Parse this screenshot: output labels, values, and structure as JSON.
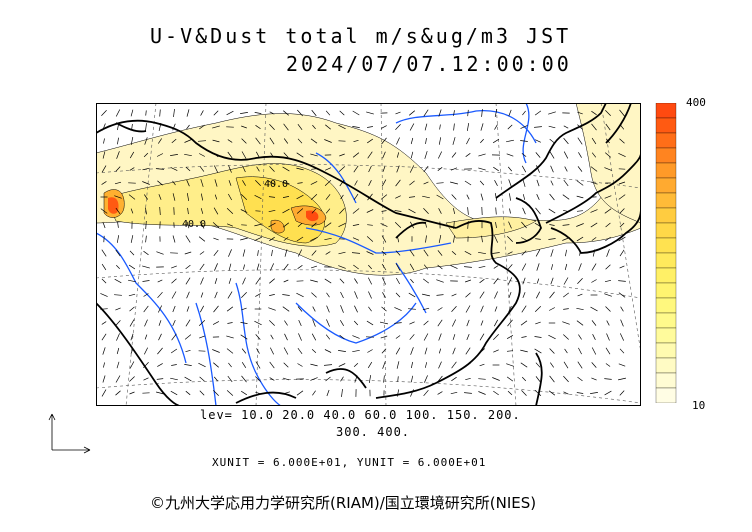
{
  "title": {
    "line1": "U-V&Dust total m/s&ug/m3 JST",
    "line2": "2024/07/07.12:00:00"
  },
  "colorbar": {
    "max_label": "400",
    "min_label": "10",
    "colors": [
      "#ff4a10",
      "#ff5a12",
      "#ff6e18",
      "#ff8420",
      "#ff9a28",
      "#ffaa30",
      "#ffbb38",
      "#ffcc40",
      "#ffd848",
      "#ffe250",
      "#ffea5c",
      "#fff066",
      "#fff470",
      "#fff87e",
      "#fffa8c",
      "#fffb9c",
      "#fffbb0",
      "#fffbc4",
      "#fffcd4",
      "#fffde4"
    ]
  },
  "contour_labels": [
    "40.0",
    "40.0"
  ],
  "levels": {
    "line1": "lev= 10.0 20.0 40.0 60.0 100. 150. 200.",
    "line2": "300. 400."
  },
  "units": "XUNIT = 6.000E+01, YUNIT = 6.000E+01",
  "credit": "©九州大学応用力学研究所(RIAM)/国立環境研究所(NIES)",
  "colors": {
    "coast": "#000000",
    "river": "#1a5aff",
    "dust_light": "#fff6b8",
    "dust_mid": "#ffe870",
    "dust_high": "#ffb030",
    "dust_peak": "#ff4a10"
  }
}
